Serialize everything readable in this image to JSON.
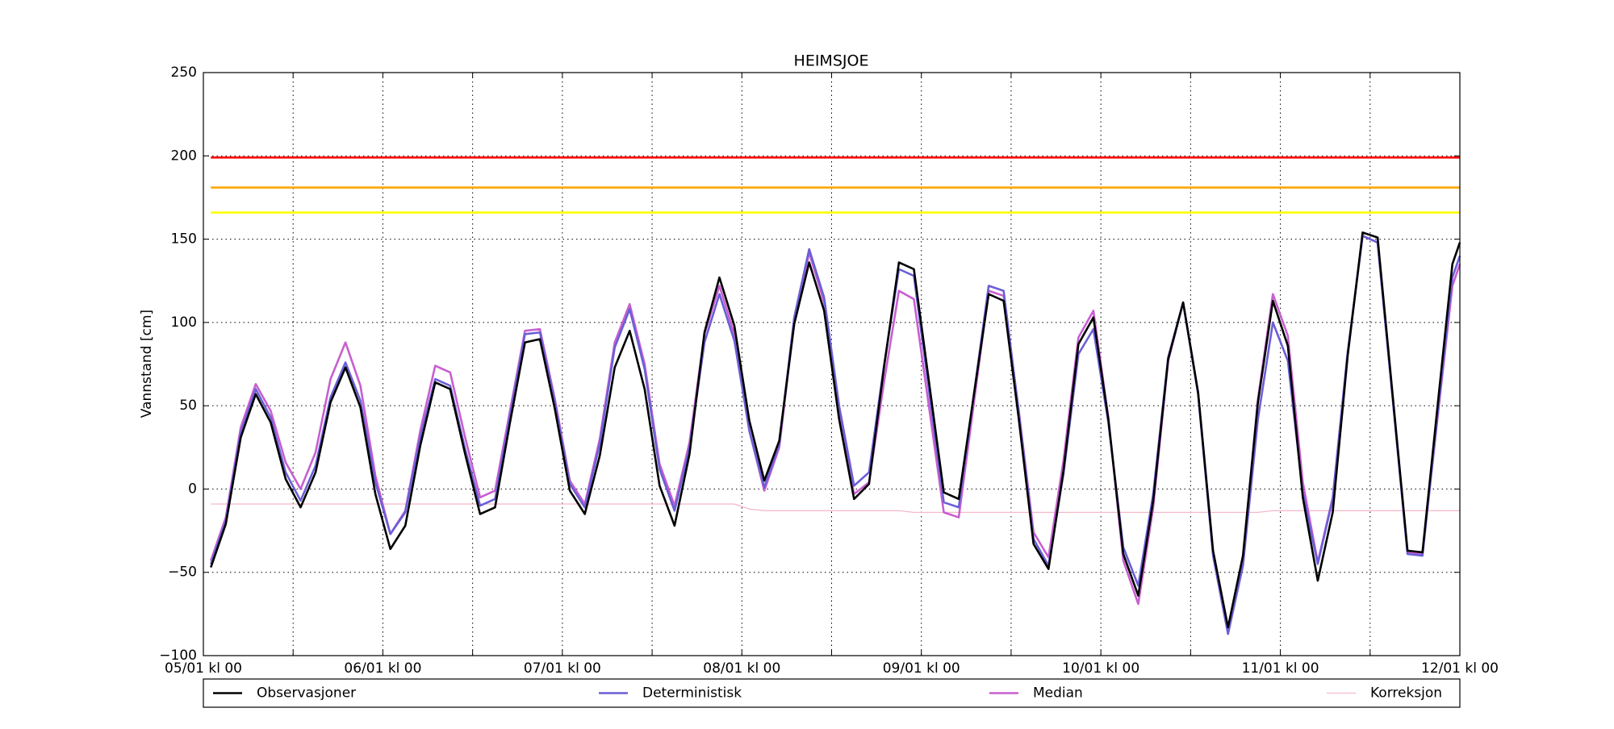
{
  "chart_data": {
    "type": "line",
    "title": "HEIMSJOE",
    "y_label": "Vannstand [cm]",
    "x": [
      "05/01 kl 01",
      "05/01 kl 03",
      "05/01 kl 05",
      "05/01 kl 07",
      "05/01 kl 09",
      "05/01 kl 11",
      "05/01 kl 13",
      "05/01 kl 15",
      "05/01 kl 17",
      "05/01 kl 19",
      "05/01 kl 21",
      "05/01 kl 23",
      "06/01 kl 01",
      "06/01 kl 03",
      "06/01 kl 05",
      "06/01 kl 07",
      "06/01 kl 09",
      "06/01 kl 11",
      "06/01 kl 13",
      "06/01 kl 15",
      "06/01 kl 17",
      "06/01 kl 19",
      "06/01 kl 21",
      "06/01 kl 23",
      "07/01 kl 01",
      "07/01 kl 03",
      "07/01 kl 05",
      "07/01 kl 07",
      "07/01 kl 09",
      "07/01 kl 11",
      "07/01 kl 13",
      "07/01 kl 15",
      "07/01 kl 17",
      "07/01 kl 19",
      "07/01 kl 21",
      "07/01 kl 23",
      "08/01 kl 01",
      "08/01 kl 03",
      "08/01 kl 05",
      "08/01 kl 07",
      "08/01 kl 09",
      "08/01 kl 11",
      "08/01 kl 13",
      "08/01 kl 15",
      "08/01 kl 17",
      "08/01 kl 19",
      "08/01 kl 21",
      "08/01 kl 23",
      "09/01 kl 01",
      "09/01 kl 03",
      "09/01 kl 05",
      "09/01 kl 07",
      "09/01 kl 09",
      "09/01 kl 11",
      "09/01 kl 13",
      "09/01 kl 15",
      "09/01 kl 17",
      "09/01 kl 19",
      "09/01 kl 21",
      "09/01 kl 23",
      "10/01 kl 01",
      "10/01 kl 03",
      "10/01 kl 05",
      "10/01 kl 07",
      "10/01 kl 09",
      "10/01 kl 11",
      "10/01 kl 13",
      "10/01 kl 15",
      "10/01 kl 17",
      "10/01 kl 19",
      "10/01 kl 21",
      "10/01 kl 23",
      "11/01 kl 01",
      "11/01 kl 03",
      "11/01 kl 05",
      "11/01 kl 07",
      "11/01 kl 09",
      "11/01 kl 11",
      "11/01 kl 13",
      "11/01 kl 15",
      "11/01 kl 17",
      "11/01 kl 19",
      "11/01 kl 21",
      "11/01 kl 23",
      "12/01 kl 00"
    ],
    "series": [
      {
        "name": "Observasjoner",
        "color": "#000000",
        "width": 2.6,
        "values": [
          -47,
          -21,
          31,
          57,
          40,
          6,
          -11,
          10,
          52,
          73,
          49,
          -3,
          -36,
          -22,
          26,
          64,
          60,
          21,
          -15,
          -11,
          40,
          88,
          90,
          48,
          -1,
          -15,
          20,
          73,
          95,
          60,
          2,
          -22,
          21,
          94,
          127,
          98,
          41,
          5,
          29,
          99,
          136,
          107,
          42,
          -6,
          3,
          73,
          136,
          132,
          65,
          -2,
          -6,
          56,
          117,
          113,
          43,
          -33,
          -48,
          11,
          87,
          103,
          42,
          -39,
          -64,
          -7,
          78,
          112,
          58,
          -37,
          -83,
          -40,
          52,
          113,
          86,
          -5,
          -55,
          -14,
          80,
          154,
          151,
          57,
          -37,
          -38,
          49,
          135,
          148
        ]
      },
      {
        "name": "Deterministisk",
        "color": "#6a5fd6",
        "width": 2.6,
        "values": [
          -45,
          -19,
          34,
          60,
          43,
          10,
          -7,
          14,
          55,
          76,
          53,
          4,
          -27,
          -14,
          31,
          66,
          62,
          24,
          -10,
          -6,
          44,
          93,
          94,
          52,
          3,
          -11,
          27,
          85,
          108,
          72,
          12,
          -13,
          25,
          88,
          117,
          89,
          35,
          1,
          27,
          103,
          144,
          115,
          50,
          2,
          10,
          74,
          132,
          128,
          60,
          -8,
          -11,
          56,
          122,
          119,
          47,
          -30,
          -46,
          9,
          81,
          96,
          40,
          -35,
          -58,
          -3,
          79,
          112,
          57,
          -40,
          -87,
          -46,
          42,
          100,
          77,
          -2,
          -45,
          -6,
          82,
          152,
          148,
          55,
          -39,
          -40,
          44,
          127,
          140
        ]
      },
      {
        "name": "Median",
        "color": "#c75fd0",
        "width": 2.6,
        "values": [
          -43,
          -17,
          37,
          63,
          47,
          16,
          0,
          22,
          66,
          88,
          62,
          8,
          -27,
          -13,
          35,
          74,
          70,
          31,
          -5,
          -1,
          47,
          95,
          96,
          54,
          5,
          -9,
          30,
          88,
          111,
          75,
          15,
          -10,
          28,
          93,
          122,
          93,
          35,
          -1,
          25,
          101,
          142,
          112,
          46,
          -3,
          4,
          64,
          119,
          114,
          50,
          -14,
          -17,
          51,
          119,
          116,
          48,
          -26,
          -41,
          17,
          91,
          107,
          43,
          -43,
          -69,
          -11,
          77,
          112,
          58,
          -38,
          -85,
          -41,
          54,
          117,
          92,
          4,
          -44,
          -5,
          82,
          152,
          148,
          55,
          -38,
          -39,
          42,
          122,
          135
        ]
      },
      {
        "name": "Korreksjon",
        "color": "#f4b8c8",
        "width": 1.3,
        "values": [
          -9,
          -9,
          -9,
          -9,
          -9,
          -9,
          -9,
          -9,
          -9,
          -9,
          -9,
          -9,
          -9,
          -9,
          -9,
          -9,
          -9,
          -9,
          -9,
          -9,
          -9,
          -9,
          -9,
          -9,
          -9,
          -9,
          -9,
          -9,
          -9,
          -9,
          -9,
          -9,
          -9,
          -9,
          -9,
          -9,
          -12,
          -13,
          -13,
          -13,
          -13,
          -13,
          -13,
          -13,
          -13,
          -13,
          -13,
          -14,
          -14,
          -14,
          -14,
          -14,
          -14,
          -14,
          -14,
          -14,
          -14,
          -14,
          -14,
          -14,
          -14,
          -14,
          -14,
          -14,
          -14,
          -14,
          -14,
          -14,
          -14,
          -14,
          -14,
          -13,
          -13,
          -13,
          -13,
          -13,
          -13,
          -13,
          -13,
          -13,
          -13,
          -13,
          -13,
          -13,
          -13
        ]
      }
    ],
    "reference_lines": [
      {
        "value": 199,
        "color": "#ff0000"
      },
      {
        "value": 181,
        "color": "#ffa500"
      },
      {
        "value": 166,
        "color": "#ffff00"
      }
    ],
    "xlim": [
      "05/01 kl 00",
      "12/01 kl 00"
    ],
    "xticks": [
      "05/01 kl 00",
      "06/01 kl 00",
      "07/01 kl 00",
      "08/01 kl 00",
      "09/01 kl 00",
      "10/01 kl 00",
      "11/01 kl 00",
      "12/01 kl 00"
    ],
    "xminor_ticks": [
      "05/01 kl 12",
      "06/01 kl 12",
      "07/01 kl 12",
      "08/01 kl 12",
      "09/01 kl 12",
      "10/01 kl 12",
      "11/01 kl 12"
    ],
    "ylim": [
      -100,
      250
    ],
    "yticks": [
      {
        "value": -100,
        "label": "−100"
      },
      {
        "value": -50,
        "label": "−50"
      },
      0,
      50,
      100,
      150,
      200,
      250
    ],
    "grid": true,
    "legend": "bottom"
  }
}
